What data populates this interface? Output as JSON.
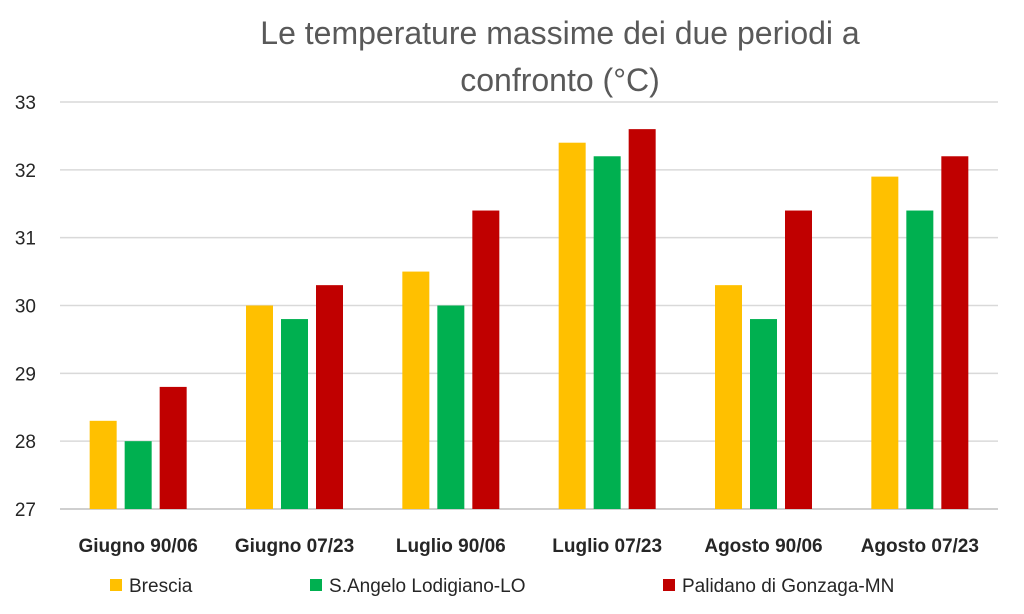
{
  "chart_data": {
    "type": "bar",
    "title_lines": [
      "Le temperature massime dei due periodi a",
      "confronto (°C)"
    ],
    "categories": [
      "Giugno 90/06",
      "Giugno 07/23",
      "Luglio 90/06",
      "Luglio 07/23",
      "Agosto 90/06",
      "Agosto 07/23"
    ],
    "series": [
      {
        "name": "Brescia",
        "color": "#FFC000",
        "values": [
          28.3,
          30.0,
          30.5,
          32.4,
          30.3,
          31.9
        ]
      },
      {
        "name": "S.Angelo Lodigiano-LO",
        "color": "#00B050",
        "values": [
          28.0,
          29.8,
          30.0,
          32.2,
          29.8,
          31.4
        ]
      },
      {
        "name": "Palidano di Gonzaga-MN",
        "color": "#C00000",
        "values": [
          28.8,
          30.3,
          31.4,
          32.6,
          31.4,
          32.2
        ]
      }
    ],
    "ylim": [
      27,
      33
    ],
    "yticks": [
      27,
      28,
      29,
      30,
      31,
      32,
      33
    ],
    "grid": true,
    "legend_position": "bottom"
  }
}
